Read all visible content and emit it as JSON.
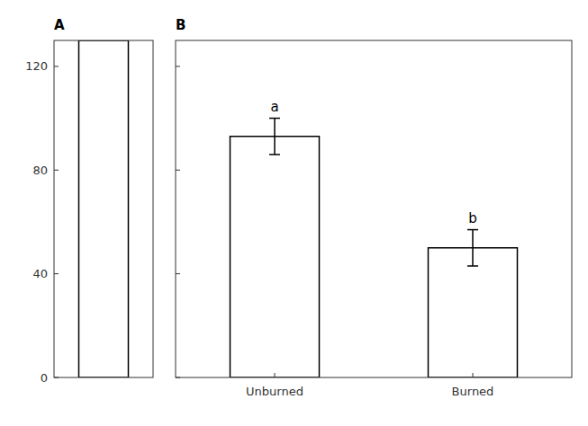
{
  "chart_data": [
    {
      "type": "bar",
      "title": "A",
      "categories": [
        null
      ],
      "values": [
        130
      ],
      "color": "#ffffff",
      "ylim": [
        0,
        130
      ],
      "yticks": [
        0,
        40,
        80,
        120
      ],
      "grid": false,
      "tick_labels": "y"
    },
    {
      "type": "bar",
      "title": "B",
      "categories": [
        "Unburned",
        "Burned"
      ],
      "values": [
        93,
        50
      ],
      "errors": [
        7,
        7
      ],
      "annotations": [
        "a",
        "b"
      ],
      "color": "#ffffff",
      "ylim": [
        0,
        130
      ],
      "yticks": [
        0,
        40,
        80,
        120
      ],
      "grid": false,
      "tick_labels": "x"
    }
  ]
}
